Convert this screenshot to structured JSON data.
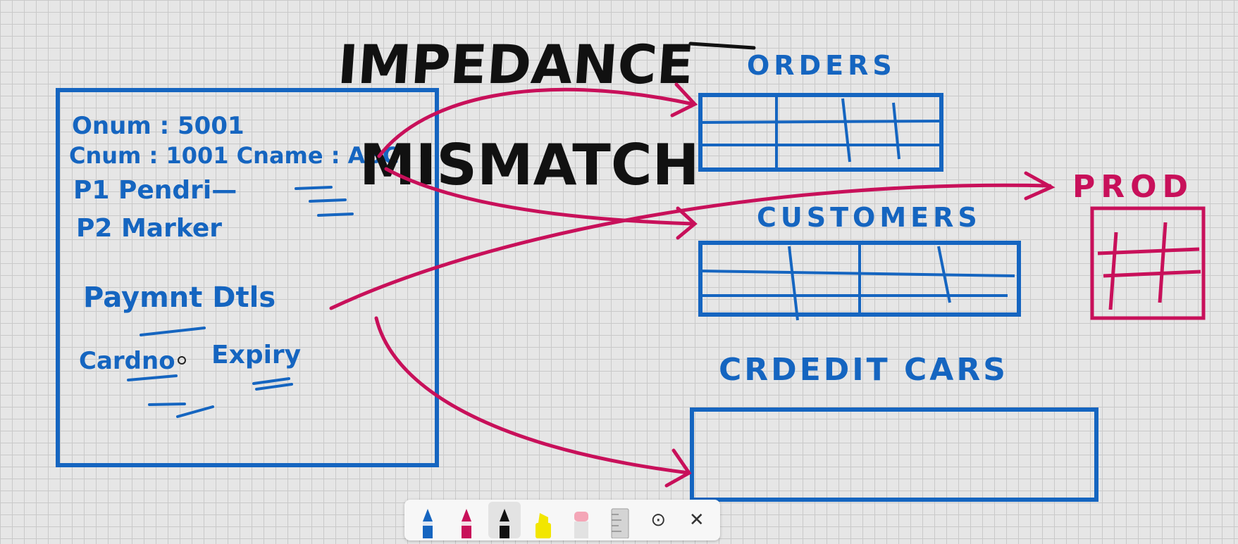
{
  "canvas": {
    "background": "#e6e6e6",
    "grid_color": "#c9c9c9"
  },
  "colors": {
    "blue_ink": "#1565c0",
    "magenta_ink": "#c8105a",
    "black_ink": "#111111",
    "yellow_highlighter": "#f2e600",
    "pink_highlighter": "#f4a6b7"
  },
  "heading": {
    "line1": "IMPEDANCE",
    "line2": "MISMATCH"
  },
  "order_form": {
    "onum": "Onum : 5001",
    "cnum_cname": "Cnum : 1001  Cname : ABC",
    "product_lines": [
      "P1   Pendri—",
      "P2   Marker"
    ],
    "payment_label": "Paymnt Dtls",
    "card_no": "Cardno",
    "expiry": "Expiry"
  },
  "tables": {
    "orders": "ORDERS",
    "customers": "CUSTOMERS",
    "prod": "PROD",
    "credit_cards": "CRDEDIT CARS"
  },
  "toolbar": {
    "tools": [
      {
        "name": "blue-pen-tool",
        "icon": "blue-pen-icon",
        "color": "#1565c0"
      },
      {
        "name": "magenta-pen-tool",
        "icon": "magenta-pen-icon",
        "color": "#c8105a"
      },
      {
        "name": "black-pen-tool",
        "icon": "black-pen-icon",
        "color": "#111111",
        "active": true
      },
      {
        "name": "yellow-highlighter-tool",
        "icon": "highlighter-icon",
        "color": "#f2e600"
      },
      {
        "name": "eraser-tool",
        "icon": "eraser-icon",
        "color": "#f4a6b7"
      },
      {
        "name": "ruler-tool",
        "icon": "ruler-icon",
        "color": "#9e9e9e"
      },
      {
        "name": "lasso-select-tool",
        "icon": "lasso-icon",
        "glyph": "⊙"
      },
      {
        "name": "close-toolbar",
        "icon": "close-icon",
        "glyph": "✕"
      }
    ]
  }
}
